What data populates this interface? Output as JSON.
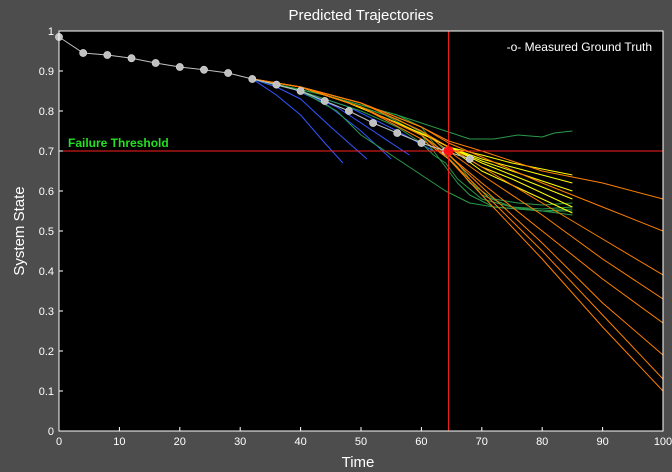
{
  "chart_data": {
    "type": "line",
    "title": "Predicted Trajectories",
    "xlabel": "Time",
    "ylabel": "System State",
    "xlim": [
      0,
      100
    ],
    "ylim": [
      0,
      1
    ],
    "xticks": [
      0,
      10,
      20,
      30,
      40,
      50,
      60,
      70,
      80,
      90,
      100
    ],
    "yticks": [
      0,
      0.1,
      0.2,
      0.3,
      0.4,
      0.5,
      0.6,
      0.7,
      0.8,
      0.9,
      1
    ],
    "grid": false,
    "legend": {
      "position": "top-right",
      "entries": [
        "-o- Measured Ground Truth"
      ]
    },
    "background": "#000000",
    "threshold": {
      "y": 0.7,
      "label": "Failure Threshold",
      "color": "#ff2020",
      "label_color": "#22e022"
    },
    "current_time": {
      "x": 64.5,
      "color": "#ff2020"
    },
    "ground_truth": {
      "name": "Measured Ground Truth",
      "color": "#c0c0c0",
      "marker": "o",
      "x": [
        0,
        4,
        8,
        12,
        16,
        20,
        24,
        28,
        32,
        36,
        40,
        44,
        48,
        52,
        56,
        60,
        64,
        68
      ],
      "y": [
        0.985,
        0.945,
        0.94,
        0.932,
        0.92,
        0.91,
        0.903,
        0.895,
        0.88,
        0.866,
        0.85,
        0.825,
        0.8,
        0.77,
        0.745,
        0.72,
        0.7,
        0.68
      ]
    },
    "prediction_start": {
      "x": 64.5,
      "y": 0.7,
      "color": "#ff1010"
    },
    "trajectories": [
      {
        "color": "#3355ff",
        "x": [
          32,
          36,
          40,
          44,
          47
        ],
        "y": [
          0.88,
          0.84,
          0.79,
          0.72,
          0.67
        ]
      },
      {
        "color": "#3355ff",
        "x": [
          32,
          36,
          40,
          45,
          51
        ],
        "y": [
          0.88,
          0.86,
          0.83,
          0.76,
          0.68
        ]
      },
      {
        "color": "#3355ff",
        "x": [
          32,
          38,
          44,
          50,
          55
        ],
        "y": [
          0.88,
          0.86,
          0.82,
          0.75,
          0.68
        ]
      },
      {
        "color": "#3355ff",
        "x": [
          32,
          40,
          46,
          52,
          58
        ],
        "y": [
          0.88,
          0.85,
          0.81,
          0.75,
          0.69
        ]
      },
      {
        "color": "#3355ff",
        "x": [
          32,
          40,
          48,
          56,
          62
        ],
        "y": [
          0.88,
          0.85,
          0.81,
          0.75,
          0.7
        ]
      },
      {
        "color": "#2a9a4a",
        "x": [
          32,
          40,
          46,
          50,
          54,
          58,
          60,
          64,
          68,
          72,
          76,
          80,
          85
        ],
        "y": [
          0.88,
          0.85,
          0.8,
          0.74,
          0.7,
          0.66,
          0.64,
          0.6,
          0.57,
          0.56,
          0.555,
          0.55,
          0.55
        ]
      },
      {
        "color": "#2a9a4a",
        "x": [
          32,
          40,
          50,
          56,
          60,
          62,
          64,
          66,
          70,
          75,
          80,
          85
        ],
        "y": [
          0.88,
          0.85,
          0.8,
          0.76,
          0.72,
          0.69,
          0.67,
          0.63,
          0.58,
          0.56,
          0.555,
          0.56
        ]
      },
      {
        "color": "#2a9a4a",
        "x": [
          32,
          44,
          54,
          60,
          62,
          64,
          66,
          68,
          72,
          76,
          80,
          85
        ],
        "y": [
          0.88,
          0.84,
          0.79,
          0.74,
          0.7,
          0.66,
          0.62,
          0.59,
          0.56,
          0.555,
          0.55,
          0.555
        ]
      },
      {
        "color": "#2a9a4a",
        "x": [
          32,
          44,
          56,
          62,
          64,
          66,
          68,
          70,
          75,
          80,
          85
        ],
        "y": [
          0.88,
          0.84,
          0.78,
          0.73,
          0.7,
          0.67,
          0.63,
          0.59,
          0.56,
          0.55,
          0.54
        ]
      },
      {
        "color": "#2a9a4a",
        "x": [
          32,
          44,
          56,
          60,
          62,
          64,
          66,
          68,
          72,
          76,
          80,
          85
        ],
        "y": [
          0.88,
          0.84,
          0.79,
          0.76,
          0.72,
          0.69,
          0.66,
          0.62,
          0.58,
          0.57,
          0.565,
          0.57
        ]
      },
      {
        "color": "#2a9a4a",
        "x": [
          32,
          44,
          56,
          60,
          64,
          68,
          70,
          72,
          76,
          80,
          82,
          85
        ],
        "y": [
          0.88,
          0.84,
          0.79,
          0.77,
          0.75,
          0.73,
          0.73,
          0.73,
          0.74,
          0.735,
          0.745,
          0.75
        ]
      },
      {
        "color": "#ffff00",
        "x": [
          32,
          40,
          48,
          56,
          62,
          64.5,
          70,
          75,
          80,
          85
        ],
        "y": [
          0.88,
          0.86,
          0.82,
          0.77,
          0.73,
          0.71,
          0.69,
          0.67,
          0.655,
          0.64
        ]
      },
      {
        "color": "#ffff00",
        "x": [
          32,
          40,
          48,
          56,
          62,
          64.5,
          70,
          75,
          80,
          85
        ],
        "y": [
          0.88,
          0.86,
          0.82,
          0.77,
          0.73,
          0.71,
          0.68,
          0.66,
          0.64,
          0.62
        ]
      },
      {
        "color": "#ffff00",
        "x": [
          32,
          40,
          48,
          56,
          62,
          64.5,
          70,
          75,
          80,
          85
        ],
        "y": [
          0.88,
          0.86,
          0.82,
          0.77,
          0.73,
          0.71,
          0.675,
          0.65,
          0.625,
          0.6
        ]
      },
      {
        "color": "#ffff00",
        "x": [
          32,
          40,
          48,
          56,
          62,
          64.5,
          70,
          75,
          80,
          85
        ],
        "y": [
          0.88,
          0.86,
          0.82,
          0.77,
          0.73,
          0.71,
          0.67,
          0.64,
          0.61,
          0.58
        ]
      },
      {
        "color": "#ffff00",
        "x": [
          32,
          40,
          48,
          56,
          62,
          64.5,
          70,
          75,
          80,
          85
        ],
        "y": [
          0.88,
          0.86,
          0.82,
          0.77,
          0.73,
          0.71,
          0.66,
          0.63,
          0.595,
          0.56
        ]
      },
      {
        "color": "#ffff00",
        "x": [
          32,
          40,
          48,
          56,
          62,
          64.5,
          70,
          75,
          80,
          85
        ],
        "y": [
          0.88,
          0.86,
          0.82,
          0.77,
          0.73,
          0.71,
          0.65,
          0.615,
          0.58,
          0.545
        ]
      },
      {
        "color": "#ff8000",
        "x": [
          32,
          40,
          50,
          60,
          64.5,
          70,
          80,
          90,
          100
        ],
        "y": [
          0.88,
          0.86,
          0.82,
          0.76,
          0.725,
          0.7,
          0.65,
          0.62,
          0.58
        ]
      },
      {
        "color": "#ff8000",
        "x": [
          32,
          40,
          50,
          60,
          64.5,
          70,
          80,
          90,
          100
        ],
        "y": [
          0.88,
          0.86,
          0.82,
          0.76,
          0.72,
          0.685,
          0.62,
          0.56,
          0.5
        ]
      },
      {
        "color": "#ff8000",
        "x": [
          32,
          40,
          50,
          60,
          64.5,
          70,
          80,
          90,
          100
        ],
        "y": [
          0.88,
          0.86,
          0.82,
          0.75,
          0.71,
          0.66,
          0.57,
          0.48,
          0.39
        ]
      },
      {
        "color": "#ff8000",
        "x": [
          32,
          40,
          50,
          60,
          64.5,
          70,
          80,
          90,
          100
        ],
        "y": [
          0.88,
          0.86,
          0.82,
          0.75,
          0.7,
          0.64,
          0.54,
          0.43,
          0.33
        ]
      },
      {
        "color": "#ff8000",
        "x": [
          32,
          40,
          50,
          60,
          64.5,
          70,
          80,
          90,
          100
        ],
        "y": [
          0.88,
          0.86,
          0.81,
          0.74,
          0.69,
          0.62,
          0.5,
          0.38,
          0.27
        ]
      },
      {
        "color": "#ff8000",
        "x": [
          32,
          40,
          50,
          60,
          64.5,
          70,
          80,
          90,
          100
        ],
        "y": [
          0.88,
          0.86,
          0.81,
          0.74,
          0.69,
          0.61,
          0.47,
          0.32,
          0.19
        ]
      },
      {
        "color": "#ff8000",
        "x": [
          32,
          40,
          50,
          60,
          64.5,
          70,
          80,
          90,
          100
        ],
        "y": [
          0.88,
          0.86,
          0.81,
          0.74,
          0.68,
          0.6,
          0.45,
          0.29,
          0.13
        ]
      },
      {
        "color": "#ff8000",
        "x": [
          32,
          40,
          50,
          60,
          64.5,
          70,
          80,
          90,
          100
        ],
        "y": [
          0.88,
          0.86,
          0.81,
          0.73,
          0.68,
          0.59,
          0.43,
          0.26,
          0.1
        ]
      }
    ]
  }
}
